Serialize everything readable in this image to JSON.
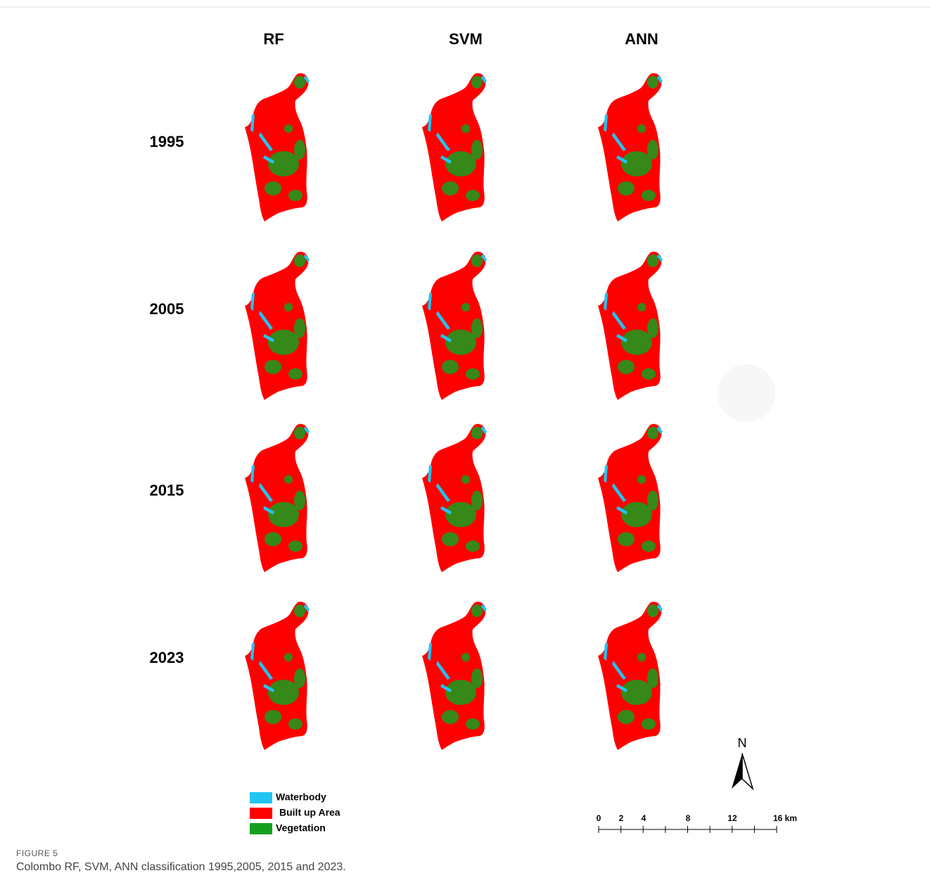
{
  "figure": {
    "columns": [
      "RF",
      "SVM",
      "ANN"
    ],
    "rows": [
      "1995",
      "2005",
      "2015",
      "2023"
    ],
    "legend": [
      {
        "label": "Waterbody",
        "color": "#22c4f2"
      },
      {
        "label": "Built up Area",
        "color": "#ff0000"
      },
      {
        "label": "Vegetation",
        "color": "#14a01e"
      }
    ],
    "north": "N",
    "scale_bar": [
      "0",
      "2",
      "4",
      "8",
      "12",
      "16 km"
    ]
  },
  "caption": {
    "label": "FIGURE 5",
    "text": "Colombo RF, SVM, ANN classification 1995,2005, 2015 and 2023."
  }
}
